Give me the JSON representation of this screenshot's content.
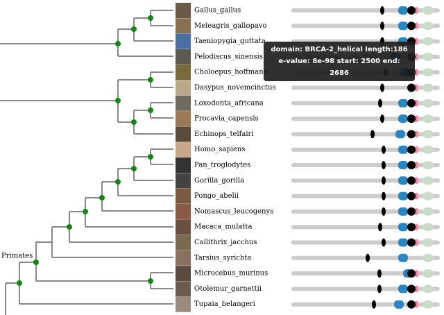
{
  "species": [
    {
      "name": "Gallus_gallus"
    },
    {
      "name": "Meleagris_gallopavo"
    },
    {
      "name": "Taeniopygia_guttata"
    },
    {
      "name": "Pelodiscus_sinensis"
    },
    {
      "name": "Choloepus_hoffmanni"
    },
    {
      "name": "Dasypus_novemcinctus"
    },
    {
      "name": "Loxodonta_africana"
    },
    {
      "name": "Procavia_capensis"
    },
    {
      "name": "Echinops_telfairi"
    },
    {
      "name": "Homo_sapiens"
    },
    {
      "name": "Pan_troglodytes"
    },
    {
      "name": "Gorilla_gorilla"
    },
    {
      "name": "Pongo_abelii"
    },
    {
      "name": "Nomascus_leucogenys"
    },
    {
      "name": "Macaca_mulatta"
    },
    {
      "name": "Callithrix_jacchus"
    },
    {
      "name": "Tarsius_syrichta"
    },
    {
      "name": "Microcebus_murinus"
    },
    {
      "name": "Otolemur_garnettii"
    },
    {
      "name": "Tupaia_belangeri"
    }
  ],
  "clade_label": "Primates",
  "tooltip": {
    "text": "domain: BRCA-2_helical length:186 e-value: 8e-98 start: 2500 end: 2686"
  }
}
